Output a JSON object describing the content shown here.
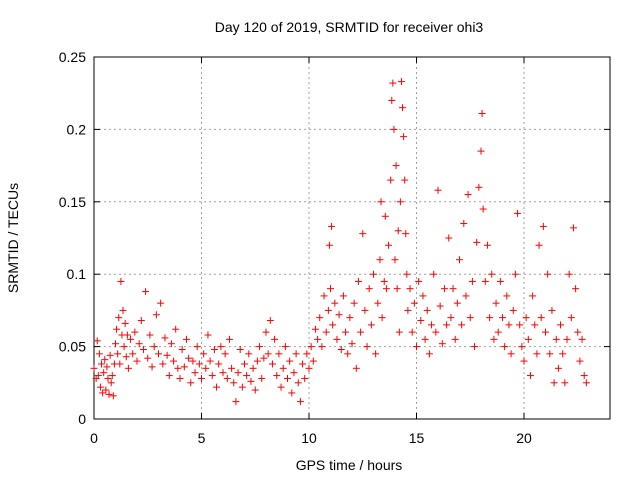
{
  "chart_data": {
    "type": "scatter",
    "title": "Day 120 of 2019, SRMTID for receiver ohi3",
    "xlabel": "GPS time / hours",
    "ylabel": "SRMTID / TECUs",
    "xlim": [
      0,
      24
    ],
    "ylim": [
      0,
      0.25
    ],
    "xticks": [
      0,
      5,
      10,
      15,
      20
    ],
    "xtick_labels": [
      "0",
      "5",
      "10",
      "15",
      "20"
    ],
    "yticks": [
      0,
      0.05,
      0.1,
      0.15,
      0.2,
      0.25
    ],
    "ytick_labels": [
      "0",
      "0.05",
      "0.1",
      "0.15",
      "0.2",
      "0.25"
    ],
    "grid": true,
    "marker": "+",
    "color": "#ff0000",
    "series": [
      {
        "name": "SRMTID",
        "points": [
          [
            0.0,
            0.035
          ],
          [
            0.1,
            0.028
          ],
          [
            0.15,
            0.054
          ],
          [
            0.2,
            0.03
          ],
          [
            0.25,
            0.045
          ],
          [
            0.3,
            0.022
          ],
          [
            0.35,
            0.038
          ],
          [
            0.4,
            0.018
          ],
          [
            0.45,
            0.032
          ],
          [
            0.5,
            0.041
          ],
          [
            0.55,
            0.02
          ],
          [
            0.6,
            0.036
          ],
          [
            0.65,
            0.028
          ],
          [
            0.7,
            0.017
          ],
          [
            0.75,
            0.044
          ],
          [
            0.8,
            0.025
          ],
          [
            0.85,
            0.03
          ],
          [
            0.9,
            0.016
          ],
          [
            0.95,
            0.038
          ],
          [
            1.0,
            0.052
          ],
          [
            1.05,
            0.062
          ],
          [
            1.1,
            0.045
          ],
          [
            1.15,
            0.07
          ],
          [
            1.2,
            0.038
          ],
          [
            1.25,
            0.095
          ],
          [
            1.3,
            0.058
          ],
          [
            1.35,
            0.075
          ],
          [
            1.4,
            0.05
          ],
          [
            1.45,
            0.066
          ],
          [
            1.5,
            0.043
          ],
          [
            1.55,
            0.058
          ],
          [
            1.6,
            0.035
          ],
          [
            1.7,
            0.055
          ],
          [
            1.8,
            0.045
          ],
          [
            1.9,
            0.06
          ],
          [
            2.0,
            0.04
          ],
          [
            2.1,
            0.052
          ],
          [
            2.2,
            0.068
          ],
          [
            2.3,
            0.048
          ],
          [
            2.4,
            0.088
          ],
          [
            2.5,
            0.042
          ],
          [
            2.6,
            0.058
          ],
          [
            2.7,
            0.036
          ],
          [
            2.8,
            0.05
          ],
          [
            2.9,
            0.072
          ],
          [
            3.0,
            0.045
          ],
          [
            3.1,
            0.08
          ],
          [
            3.2,
            0.038
          ],
          [
            3.3,
            0.056
          ],
          [
            3.4,
            0.044
          ],
          [
            3.5,
            0.03
          ],
          [
            3.6,
            0.052
          ],
          [
            3.7,
            0.04
          ],
          [
            3.8,
            0.062
          ],
          [
            3.9,
            0.035
          ],
          [
            4.0,
            0.028
          ],
          [
            4.1,
            0.048
          ],
          [
            4.2,
            0.036
          ],
          [
            4.3,
            0.055
          ],
          [
            4.4,
            0.042
          ],
          [
            4.5,
            0.025
          ],
          [
            4.6,
            0.04
          ],
          [
            4.7,
            0.032
          ],
          [
            4.8,
            0.05
          ],
          [
            4.9,
            0.038
          ],
          [
            5.0,
            0.028
          ],
          [
            5.1,
            0.045
          ],
          [
            5.2,
            0.035
          ],
          [
            5.3,
            0.058
          ],
          [
            5.4,
            0.04
          ],
          [
            5.5,
            0.03
          ],
          [
            5.6,
            0.048
          ],
          [
            5.7,
            0.022
          ],
          [
            5.8,
            0.038
          ],
          [
            5.9,
            0.05
          ],
          [
            6.0,
            0.032
          ],
          [
            6.1,
            0.045
          ],
          [
            6.2,
            0.028
          ],
          [
            6.3,
            0.055
          ],
          [
            6.4,
            0.035
          ],
          [
            6.5,
            0.025
          ],
          [
            6.6,
            0.012
          ],
          [
            6.7,
            0.032
          ],
          [
            6.8,
            0.048
          ],
          [
            6.9,
            0.022
          ],
          [
            7.0,
            0.038
          ],
          [
            7.1,
            0.03
          ],
          [
            7.2,
            0.045
          ],
          [
            7.3,
            0.026
          ],
          [
            7.4,
            0.035
          ],
          [
            7.5,
            0.02
          ],
          [
            7.6,
            0.04
          ],
          [
            7.7,
            0.05
          ],
          [
            7.8,
            0.028
          ],
          [
            7.9,
            0.042
          ],
          [
            8.0,
            0.06
          ],
          [
            8.1,
            0.045
          ],
          [
            8.2,
            0.068
          ],
          [
            8.3,
            0.038
          ],
          [
            8.4,
            0.055
          ],
          [
            8.5,
            0.03
          ],
          [
            8.6,
            0.045
          ],
          [
            8.7,
            0.022
          ],
          [
            8.8,
            0.035
          ],
          [
            8.9,
            0.05
          ],
          [
            9.0,
            0.028
          ],
          [
            9.1,
            0.04
          ],
          [
            9.2,
            0.018
          ],
          [
            9.3,
            0.032
          ],
          [
            9.4,
            0.045
          ],
          [
            9.5,
            0.025
          ],
          [
            9.6,
            0.012
          ],
          [
            9.7,
            0.038
          ],
          [
            9.8,
            0.028
          ],
          [
            9.9,
            0.045
          ],
          [
            10.0,
            0.035
          ],
          [
            10.1,
            0.05
          ],
          [
            10.2,
            0.04
          ],
          [
            10.3,
            0.062
          ],
          [
            10.4,
            0.055
          ],
          [
            10.5,
            0.07
          ],
          [
            10.6,
            0.05
          ],
          [
            10.7,
            0.085
          ],
          [
            10.8,
            0.06
          ],
          [
            10.9,
            0.075
          ],
          [
            10.95,
            0.12
          ],
          [
            11.0,
            0.09
          ],
          [
            11.05,
            0.133
          ],
          [
            11.1,
            0.065
          ],
          [
            11.2,
            0.08
          ],
          [
            11.3,
            0.055
          ],
          [
            11.4,
            0.072
          ],
          [
            11.5,
            0.048
          ],
          [
            11.6,
            0.085
          ],
          [
            11.7,
            0.06
          ],
          [
            11.8,
            0.045
          ],
          [
            11.9,
            0.07
          ],
          [
            12.0,
            0.052
          ],
          [
            12.1,
            0.08
          ],
          [
            12.2,
            0.035
          ],
          [
            12.3,
            0.095
          ],
          [
            12.4,
            0.06
          ],
          [
            12.5,
            0.128
          ],
          [
            12.6,
            0.075
          ],
          [
            12.7,
            0.05
          ],
          [
            12.8,
            0.09
          ],
          [
            12.9,
            0.065
          ],
          [
            13.0,
            0.1
          ],
          [
            13.1,
            0.045
          ],
          [
            13.2,
            0.08
          ],
          [
            13.3,
            0.11
          ],
          [
            13.35,
            0.15
          ],
          [
            13.4,
            0.07
          ],
          [
            13.5,
            0.095
          ],
          [
            13.55,
            0.14
          ],
          [
            13.6,
            0.09
          ],
          [
            13.7,
            0.12
          ],
          [
            13.8,
            0.165
          ],
          [
            13.85,
            0.22
          ],
          [
            13.9,
            0.232
          ],
          [
            13.95,
            0.2
          ],
          [
            14.0,
            0.11
          ],
          [
            14.05,
            0.175
          ],
          [
            14.1,
            0.09
          ],
          [
            14.15,
            0.13
          ],
          [
            14.2,
            0.06
          ],
          [
            14.25,
            0.15
          ],
          [
            14.3,
            0.233
          ],
          [
            14.35,
            0.215
          ],
          [
            14.4,
            0.195
          ],
          [
            14.45,
            0.165
          ],
          [
            14.5,
            0.128
          ],
          [
            14.55,
            0.1
          ],
          [
            14.6,
            0.075
          ],
          [
            14.7,
            0.09
          ],
          [
            14.8,
            0.06
          ],
          [
            14.9,
            0.08
          ],
          [
            15.0,
            0.05
          ],
          [
            15.1,
            0.095
          ],
          [
            15.2,
            0.068
          ],
          [
            15.3,
            0.085
          ],
          [
            15.4,
            0.055
          ],
          [
            15.5,
            0.075
          ],
          [
            15.6,
            0.045
          ],
          [
            15.7,
            0.065
          ],
          [
            15.8,
            0.1
          ],
          [
            15.9,
            0.06
          ],
          [
            16.0,
            0.158
          ],
          [
            16.1,
            0.078
          ],
          [
            16.2,
            0.052
          ],
          [
            16.3,
            0.09
          ],
          [
            16.4,
            0.065
          ],
          [
            16.5,
            0.125
          ],
          [
            16.6,
            0.07
          ],
          [
            16.7,
            0.09
          ],
          [
            16.8,
            0.055
          ],
          [
            16.9,
            0.08
          ],
          [
            17.0,
            0.11
          ],
          [
            17.1,
            0.065
          ],
          [
            17.2,
            0.135
          ],
          [
            17.3,
            0.085
          ],
          [
            17.4,
            0.155
          ],
          [
            17.5,
            0.07
          ],
          [
            17.6,
            0.095
          ],
          [
            17.7,
            0.05
          ],
          [
            17.8,
            0.122
          ],
          [
            17.9,
            0.16
          ],
          [
            18.0,
            0.185
          ],
          [
            18.05,
            0.211
          ],
          [
            18.1,
            0.145
          ],
          [
            18.2,
            0.095
          ],
          [
            18.3,
            0.12
          ],
          [
            18.4,
            0.07
          ],
          [
            18.5,
            0.1
          ],
          [
            18.6,
            0.055
          ],
          [
            18.7,
            0.08
          ],
          [
            18.8,
            0.06
          ],
          [
            18.9,
            0.095
          ],
          [
            19.0,
            0.07
          ],
          [
            19.1,
            0.05
          ],
          [
            19.2,
            0.085
          ],
          [
            19.3,
            0.065
          ],
          [
            19.4,
            0.045
          ],
          [
            19.5,
            0.075
          ],
          [
            19.6,
            0.1
          ],
          [
            19.7,
            0.142
          ],
          [
            19.8,
            0.065
          ],
          [
            19.9,
            0.05
          ],
          [
            20.0,
            0.04
          ],
          [
            20.1,
            0.07
          ],
          [
            20.2,
            0.055
          ],
          [
            20.3,
            0.03
          ],
          [
            20.4,
            0.085
          ],
          [
            20.5,
            0.065
          ],
          [
            20.6,
            0.045
          ],
          [
            20.7,
            0.12
          ],
          [
            20.8,
            0.07
          ],
          [
            20.9,
            0.133
          ],
          [
            21.0,
            0.06
          ],
          [
            21.1,
            0.1
          ],
          [
            21.2,
            0.045
          ],
          [
            21.3,
            0.075
          ],
          [
            21.4,
            0.025
          ],
          [
            21.5,
            0.055
          ],
          [
            21.6,
            0.035
          ],
          [
            21.7,
            0.065
          ],
          [
            21.8,
            0.045
          ],
          [
            21.9,
            0.025
          ],
          [
            22.0,
            0.055
          ],
          [
            22.1,
            0.1
          ],
          [
            22.2,
            0.07
          ],
          [
            22.3,
            0.132
          ],
          [
            22.4,
            0.09
          ],
          [
            22.5,
            0.06
          ],
          [
            22.6,
            0.04
          ],
          [
            22.7,
            0.055
          ],
          [
            22.8,
            0.03
          ],
          [
            22.9,
            0.025
          ]
        ]
      }
    ]
  }
}
